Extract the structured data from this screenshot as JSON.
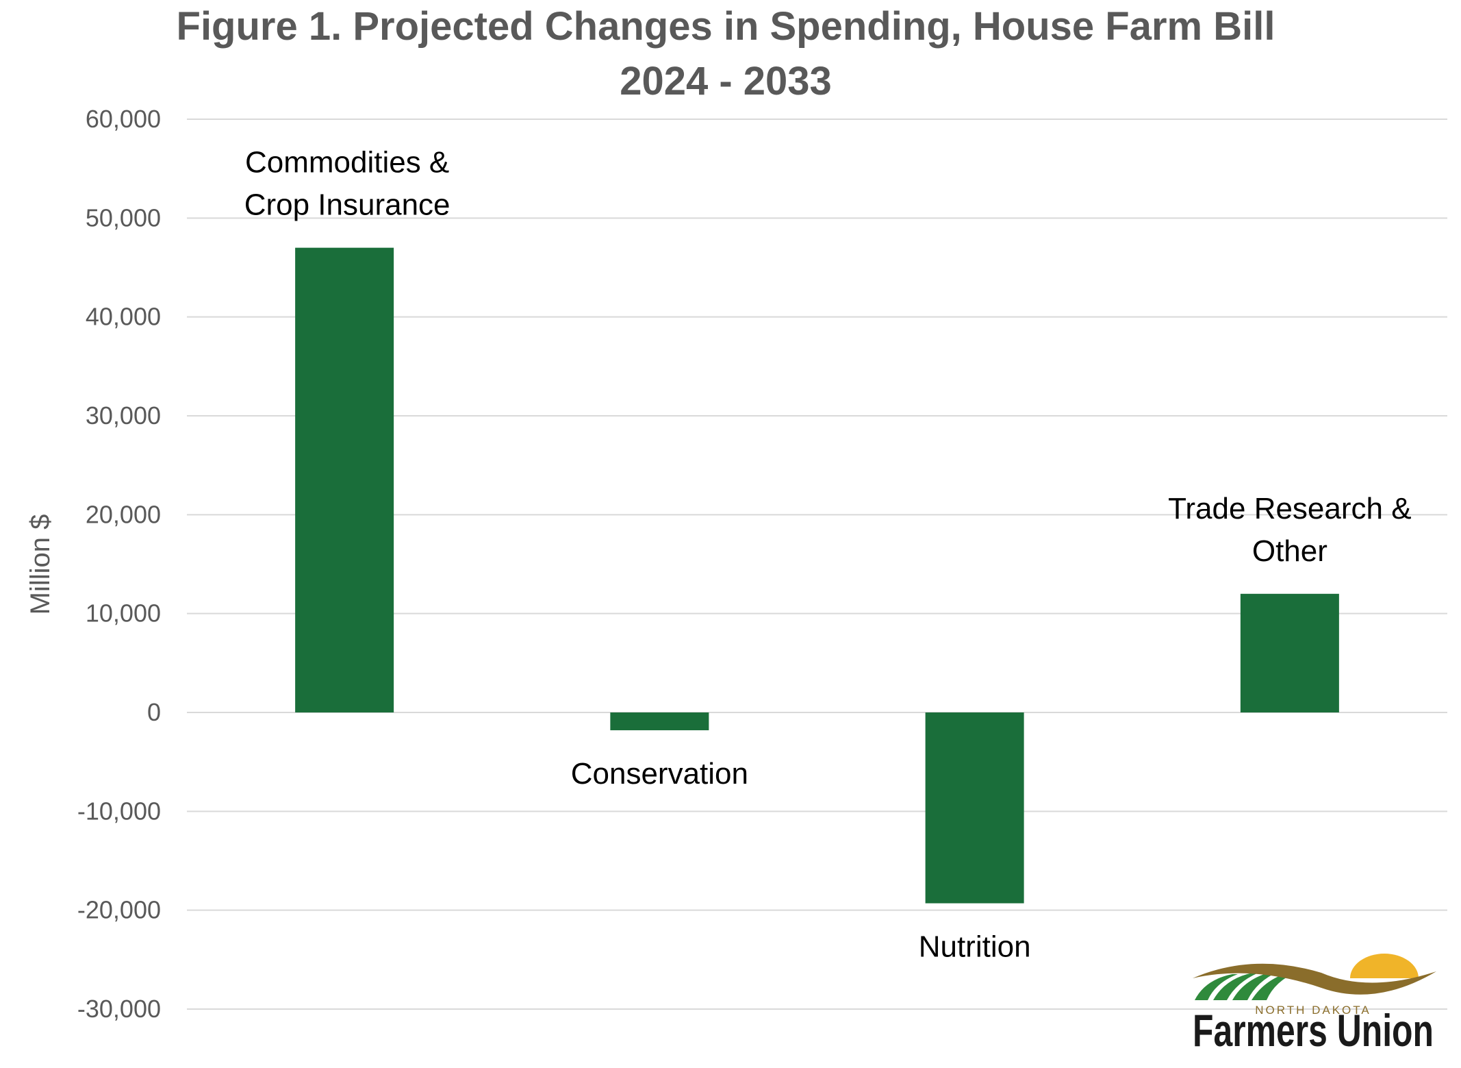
{
  "chart_data": {
    "type": "bar",
    "title_lines": [
      "Figure 1. Projected Changes in Spending, House Farm Bill",
      "2024 - 2033"
    ],
    "ylabel": "Million $",
    "xlabel": "",
    "ylim": [
      -30000,
      60000
    ],
    "yticks": [
      60000,
      50000,
      40000,
      30000,
      20000,
      10000,
      0,
      -10000,
      -20000,
      -30000
    ],
    "ytick_labels": [
      "60,000",
      "50,000",
      "40,000",
      "30,000",
      "20,000",
      "10,000",
      "0",
      "-10,000",
      "-20,000",
      "-30,000"
    ],
    "grid": true,
    "categories": [
      [
        "Commodities &",
        "Crop Insurance"
      ],
      [
        "Conservation"
      ],
      [
        "Nutrition"
      ],
      [
        "Trade Research &",
        "Other"
      ]
    ],
    "values": [
      47000,
      -1800,
      -19300,
      12000
    ],
    "bar_color": "#1a6e3a"
  },
  "logo": {
    "small_text": "NORTH DAKOTA",
    "big_text": "Farmers Union",
    "colors": {
      "sun": "#f0b429",
      "swoosh": "#8a6d2b",
      "field": "#2f8a3c"
    }
  }
}
